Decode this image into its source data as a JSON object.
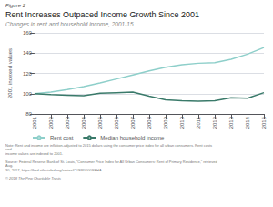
{
  "chart_data": {
    "type": "line",
    "figure_label": "Figure 2",
    "title": "Rent Increases Outpaced Income Growth Since 2001",
    "subtitle": "Changes in rent and household income, 2001-15",
    "ylabel": "2001 indexed values",
    "x": [
      2001,
      2002,
      2003,
      2004,
      2005,
      2006,
      2007,
      2008,
      2009,
      2010,
      2011,
      2012,
      2013,
      2014,
      2015
    ],
    "series": [
      {
        "name": "Rent cost",
        "color": "#8ecfca",
        "values": [
          100.0,
          101.5,
          104.0,
          107.0,
          110.5,
          114.5,
          118.5,
          122.5,
          126.0,
          128.5,
          130.0,
          130.5,
          134.0,
          139.0,
          145.5
        ]
      },
      {
        "name": "Median household income",
        "color": "#3a7a6a",
        "values": [
          100.0,
          99.0,
          98.5,
          98.0,
          100.5,
          101.0,
          101.5,
          97.5,
          94.0,
          93.0,
          92.5,
          93.0,
          96.0,
          95.5,
          101.0
        ]
      }
    ],
    "xlim": [
      2001,
      2015
    ],
    "xticks": [
      2001,
      2002,
      2003,
      2004,
      2005,
      2006,
      2007,
      2008,
      2009,
      2010,
      2011,
      2012,
      2013,
      2014,
      2015
    ],
    "ylim": [
      80,
      160
    ],
    "yticks": [
      80,
      100,
      120,
      140,
      160
    ],
    "grid": true,
    "legend": "lower left",
    "notes": [
      "Note: Rent and income are inflation-adjusted to 2015 dollars using the consumer price index for all urban consumers. Rent costs and",
      "income values are indexed to 2001.",
      "Source: Federal Reserve Bank of St. Louis, “Consumer Price Index for All Urban Consumers: Rent of Primary Residence,” retrieved Aug.",
      "30, 2017, https://fred.stlouisfed.org/series/CUSR0000SEHA",
      "© 2018 The Pew Charitable Trusts"
    ]
  }
}
